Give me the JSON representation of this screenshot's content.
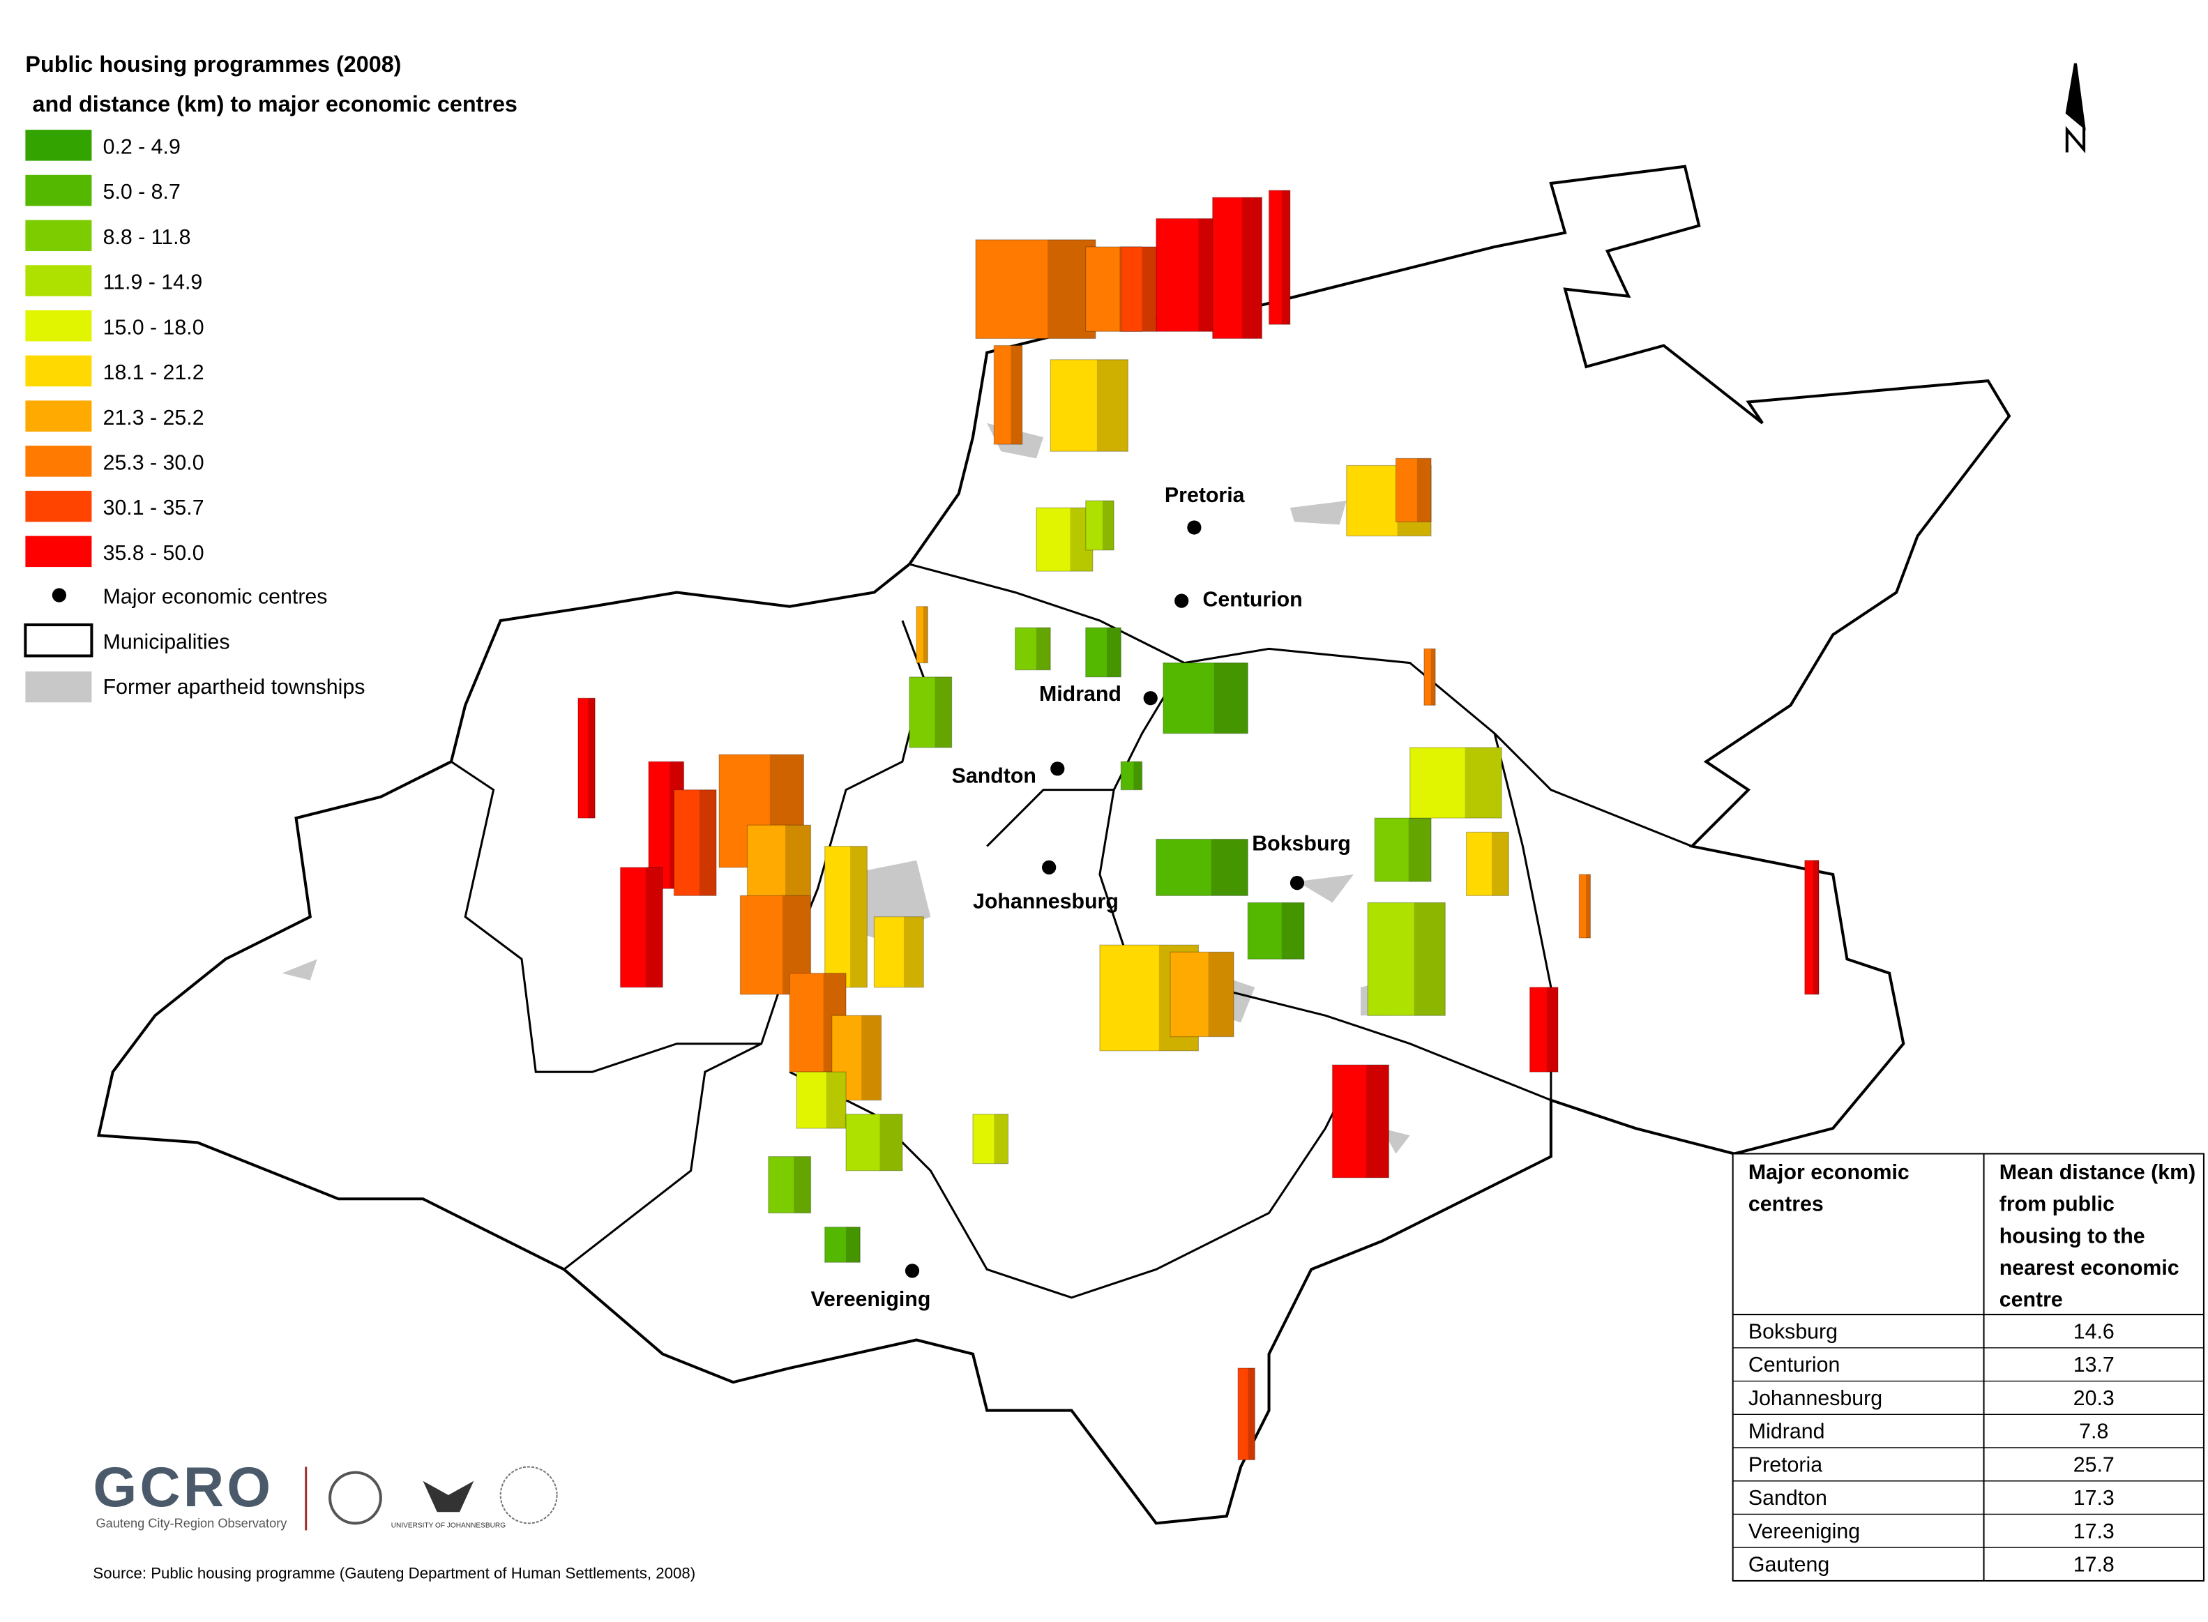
{
  "title": [
    "Public housing programmes (2008)",
    "and distance (km) to major economic centres"
  ],
  "legend": {
    "classes": [
      {
        "label": "0.2 - 4.9",
        "color": "#33a300"
      },
      {
        "label": "5.0 - 8.7",
        "color": "#55b800"
      },
      {
        "label": "8.8 - 11.8",
        "color": "#7ccc00"
      },
      {
        "label": "11.9 - 14.9",
        "color": "#aee000"
      },
      {
        "label": "15.0 - 18.0",
        "color": "#e2f500"
      },
      {
        "label": "18.1 - 21.2",
        "color": "#ffd900"
      },
      {
        "label": "21.3 - 25.2",
        "color": "#ffaa00"
      },
      {
        "label": "25.3 - 30.0",
        "color": "#ff7a00"
      },
      {
        "label": "30.1 - 35.7",
        "color": "#ff4400"
      },
      {
        "label": "35.8 - 50.0",
        "color": "#ff0000"
      }
    ],
    "centres": "Major economic centres",
    "municipalities": "Municipalities",
    "townships": "Former apartheid townships"
  },
  "centres": [
    "Pretoria",
    "Centurion",
    "Midrand",
    "Sandton",
    "Johannesburg",
    "Boksburg",
    "Vereeniging"
  ],
  "table": {
    "header": [
      "Major economic centres",
      "Mean distance (km) from public housing to the nearest economic centre"
    ],
    "rows": [
      [
        "Boksburg",
        14.6
      ],
      [
        "Centurion",
        13.7
      ],
      [
        "Johannesburg",
        20.3
      ],
      [
        "Midrand",
        7.8
      ],
      [
        "Pretoria",
        25.7
      ],
      [
        "Sandton",
        17.3
      ],
      [
        "Vereeniging",
        17.3
      ],
      [
        "Gauteng",
        17.8
      ]
    ]
  },
  "logo": {
    "name": "GCRO",
    "subtitle": "Gauteng City-Region Observatory",
    "university": "UNIVERSITY OF JOHANNESBURG"
  },
  "source": "Source: Public housing programme (Gauteng Department of Human Settlements, 2008)"
}
